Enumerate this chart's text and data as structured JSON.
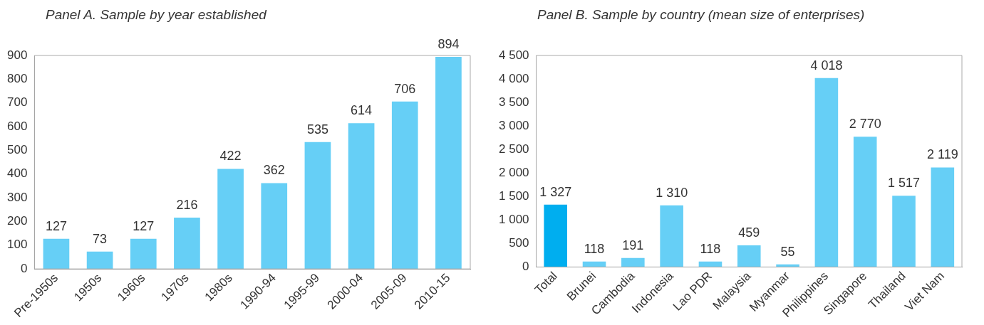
{
  "chart_data": [
    {
      "type": "bar",
      "title": "Panel A. Sample by year established",
      "categories": [
        "Pre-1950s",
        "1950s",
        "1960s",
        "1970s",
        "1980s",
        "1990-94",
        "1995-99",
        "2000-04",
        "2005-09",
        "2010-15"
      ],
      "values": [
        127,
        73,
        127,
        216,
        422,
        362,
        535,
        614,
        706,
        894
      ],
      "color": "#66cff6",
      "ylim": [
        0,
        900
      ],
      "yticks": [
        0,
        100,
        200,
        300,
        400,
        500,
        600,
        700,
        800,
        900
      ],
      "grid": false,
      "legend": false,
      "data_labels": true
    },
    {
      "type": "bar",
      "title": "Panel B. Sample by country (mean size of enterprises)",
      "categories": [
        "Total",
        "Brunei",
        "Cambodia",
        "Indonesia",
        "Lao PDR",
        "Malaysia",
        "Myanmar",
        "Philippines",
        "Singapore",
        "Thailand",
        "Viet Nam"
      ],
      "values": [
        1327,
        118,
        191,
        1310,
        118,
        459,
        55,
        4018,
        2770,
        1517,
        2119
      ],
      "colors": [
        "#00aeef",
        "#66cff6",
        "#66cff6",
        "#66cff6",
        "#66cff6",
        "#66cff6",
        "#66cff6",
        "#66cff6",
        "#66cff6",
        "#66cff6",
        "#66cff6"
      ],
      "value_labels": [
        "1 327",
        "118",
        "191",
        "1 310",
        "118",
        "459",
        "55",
        "4 018",
        "2 770",
        "1 517",
        "2 119"
      ],
      "ylim": [
        0,
        4500
      ],
      "yticks": [
        0,
        {
          "value": 500,
          "label": "500"
        },
        {
          "value": 1000,
          "label": "1 000"
        },
        {
          "value": 1500,
          "label": "1 500"
        },
        {
          "value": 2000,
          "label": "2 000"
        },
        {
          "value": 2500,
          "label": "2 500"
        },
        {
          "value": 3000,
          "label": "3 000"
        },
        {
          "value": 3500,
          "label": "3 500"
        },
        {
          "value": 4000,
          "label": "4 000"
        },
        {
          "value": 4500,
          "label": "4 500"
        }
      ],
      "grid": false,
      "legend": false
    }
  ]
}
